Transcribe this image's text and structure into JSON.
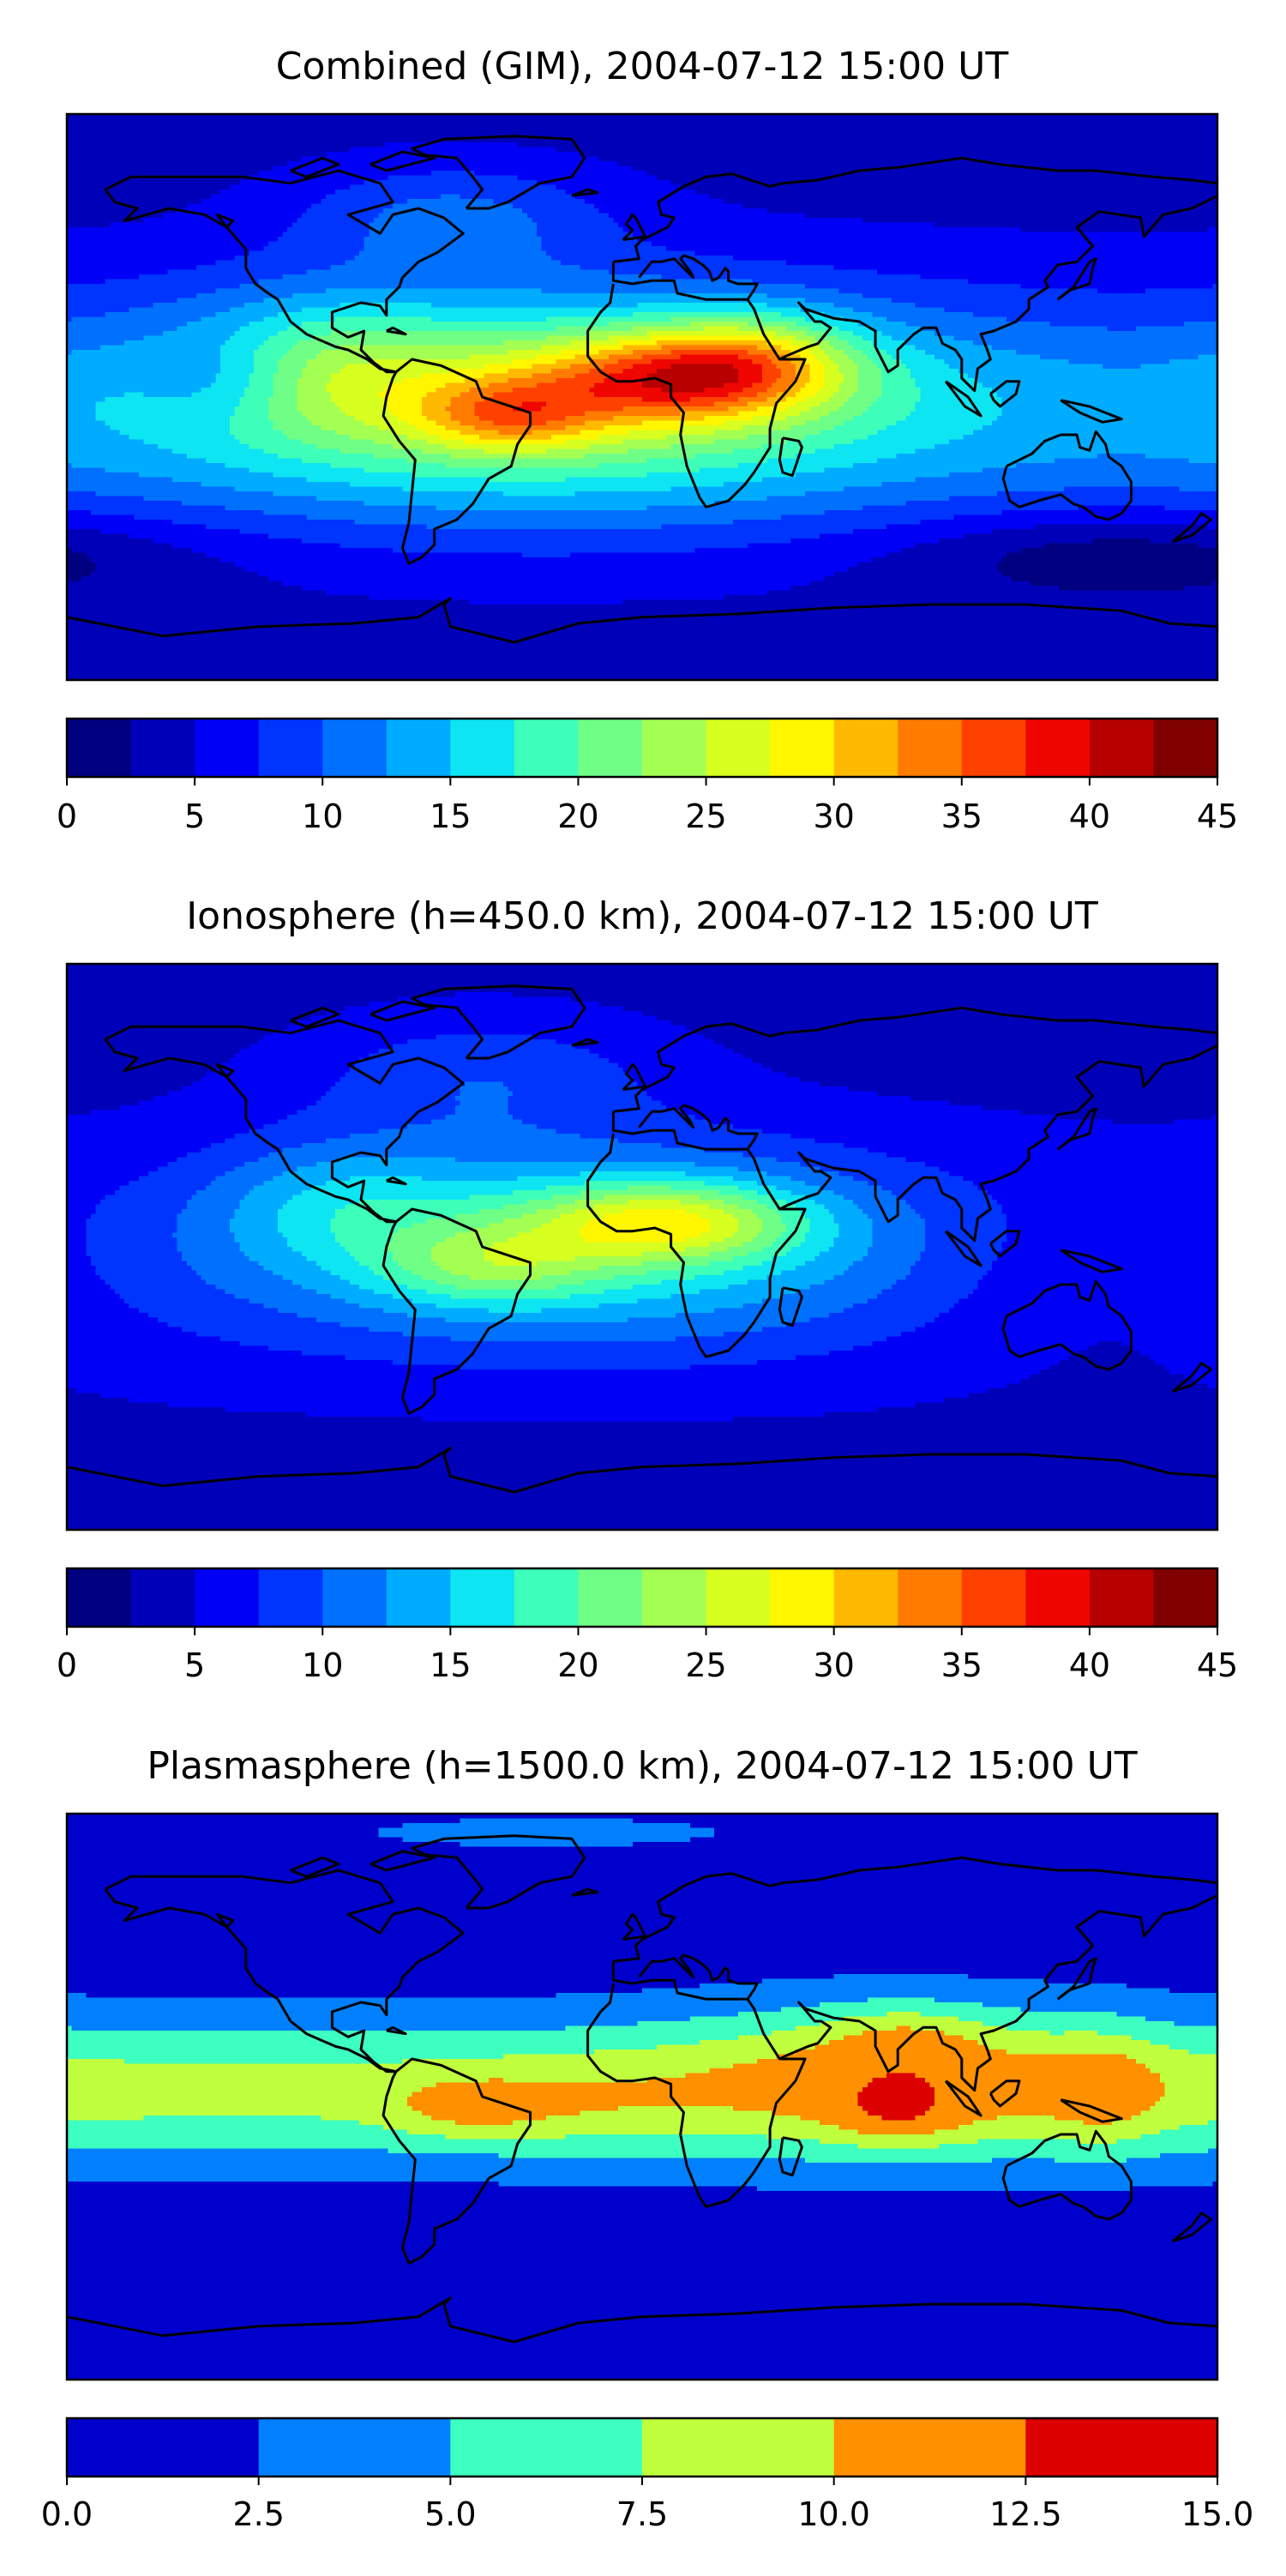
{
  "chart_data": [
    {
      "type": "heatmap",
      "title": "Combined (GIM), 2004-07-12 15:00 UT",
      "colorbar": {
        "min": 0,
        "max": 45,
        "step": 2.5,
        "ticks": [
          "0",
          "5",
          "10",
          "15",
          "20",
          "25",
          "30",
          "35",
          "40",
          "45"
        ],
        "colors": [
          "#000080",
          "#0000b8",
          "#0000f6",
          "#0034ff",
          "#0070ff",
          "#00acff",
          "#0de5f2",
          "#3dffba",
          "#6fff86",
          "#a4ff53",
          "#d7ff1f",
          "#fff600",
          "#ffb900",
          "#ff7c00",
          "#ff4100",
          "#ef0600",
          "#b70000",
          "#800000"
        ]
      },
      "map": {
        "projection": "equirectangular",
        "lon_range": [
          -180,
          180
        ],
        "lat_range": [
          -90,
          90
        ],
        "coastlines": true
      },
      "peaks": [
        {
          "lon": -42,
          "lat": -8,
          "value": 35
        },
        {
          "lon": 10,
          "lat": 6,
          "value": 38
        },
        {
          "lon": 30,
          "lat": 12,
          "value": 36
        }
      ]
    },
    {
      "type": "heatmap",
      "title": "Ionosphere  (h=450.0 km), 2004-07-12 15:00 UT",
      "colorbar": {
        "min": 0,
        "max": 45,
        "step": 2.5,
        "ticks": [
          "0",
          "5",
          "10",
          "15",
          "20",
          "25",
          "30",
          "35",
          "40",
          "45"
        ],
        "colors": [
          "#000080",
          "#0000b8",
          "#0000f6",
          "#0034ff",
          "#0070ff",
          "#00acff",
          "#0de5f2",
          "#3dffba",
          "#6fff86",
          "#a4ff53",
          "#d7ff1f",
          "#fff600",
          "#ffb900",
          "#ff7c00",
          "#ff4100",
          "#ef0600",
          "#b70000",
          "#800000"
        ]
      },
      "map": {
        "projection": "equirectangular",
        "lon_range": [
          -180,
          180
        ],
        "lat_range": [
          -90,
          90
        ],
        "coastlines": true
      },
      "peaks": [
        {
          "lon": 10,
          "lat": 8,
          "value": 31
        },
        {
          "lon": -45,
          "lat": -8,
          "value": 26
        }
      ]
    },
    {
      "type": "heatmap",
      "title": "Plasmasphere (h=1500.0 km), 2004-07-12 15:00 UT",
      "colorbar": {
        "min": 0.0,
        "max": 15.0,
        "step": 2.5,
        "ticks": [
          "0.0",
          "2.5",
          "5.0",
          "7.5",
          "10.0",
          "12.5",
          "15.0"
        ],
        "colors": [
          "#0000cc",
          "#0080ff",
          "#3dffc0",
          "#c0ff3d",
          "#ff9000",
          "#dd0000"
        ]
      },
      "map": {
        "projection": "equirectangular",
        "lon_range": [
          -180,
          180
        ],
        "lat_range": [
          -90,
          90
        ],
        "coastlines": true
      },
      "peaks": [
        {
          "lon": 80,
          "lat": 20,
          "value": 13
        },
        {
          "lon": 80,
          "lat": -8,
          "value": 13
        },
        {
          "lon": 145,
          "lat": 2,
          "value": 11
        },
        {
          "lon": -52,
          "lat": -5,
          "value": 11
        }
      ]
    }
  ]
}
